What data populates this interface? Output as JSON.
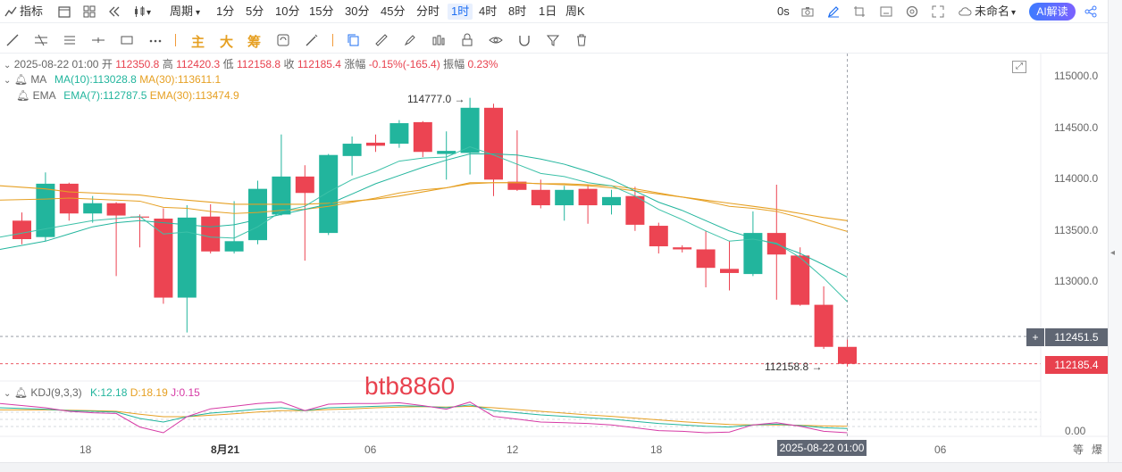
{
  "toolbar": {
    "indicators_label": "指标",
    "period_label": "周期",
    "timeframes": [
      "1分",
      "5分",
      "10分",
      "15分",
      "30分",
      "45分",
      "分时",
      "1时",
      "4时",
      "8时",
      "1日",
      "周K"
    ],
    "active_timeframe": "1时",
    "countdown": "0s",
    "layout_name": "未命名",
    "ai_button": "AI解读"
  },
  "drawing_toolbar": {
    "text_main": "主",
    "text_big": "大",
    "text_chip": "筹"
  },
  "info": {
    "date": "2025-08-22 01:00",
    "open_label": "开",
    "open": "112350.8",
    "high_label": "高",
    "high": "112420.3",
    "low_label": "低",
    "low": "112158.8",
    "close_label": "收",
    "close": "112185.4",
    "change_label": "涨幅",
    "change": "-0.15%(-165.4)",
    "amplitude_label": "振幅",
    "amplitude": "0.23%"
  },
  "ma": {
    "name": "MA",
    "ma10": "MA(10):113028.8",
    "ma30": "MA(30):113611.1"
  },
  "ema": {
    "name": "EMA",
    "ema7": "EMA(7):112787.5",
    "ema30": "EMA(30):113474.9"
  },
  "kdj": {
    "name": "KDJ(9,3,3)",
    "k": "K:12.18",
    "d": "D:18.19",
    "j": "J:0.15"
  },
  "watermark": "btb8860",
  "price_axis": [
    "115000.0",
    "114500.0",
    "114000.0",
    "113500.0",
    "113000.0"
  ],
  "price_marks": {
    "crosshair": "112451.5",
    "last": "112185.4",
    "max_label": "114777.0",
    "min_label": "112158.8"
  },
  "kdj_axis": "0.00",
  "time_axis": [
    "18",
    "8月21",
    "06",
    "12",
    "18",
    "06"
  ],
  "crosshair_time": "2025-08-22 01:00",
  "axis_corner": [
    "等",
    "爆"
  ],
  "colors": {
    "up": "#22b59d",
    "down": "#ec4452",
    "ma10": "#22b59d",
    "ma30": "#e6a023",
    "accent": "#1f6ff2"
  },
  "chart_data": {
    "type": "candlestick",
    "interval": "1h",
    "candles": [
      {
        "o": 113580,
        "h": 113660,
        "l": 113350,
        "c": 113400
      },
      {
        "o": 113420,
        "h": 114050,
        "l": 113380,
        "c": 113940
      },
      {
        "o": 113940,
        "h": 113950,
        "l": 113580,
        "c": 113650
      },
      {
        "o": 113650,
        "h": 113820,
        "l": 113560,
        "c": 113750
      },
      {
        "o": 113750,
        "h": 113760,
        "l": 113040,
        "c": 113630
      },
      {
        "o": 113620,
        "h": 113640,
        "l": 113320,
        "c": 113610
      },
      {
        "o": 113600,
        "h": 113700,
        "l": 112770,
        "c": 112830
      },
      {
        "o": 112830,
        "h": 113730,
        "l": 112490,
        "c": 113610
      },
      {
        "o": 113620,
        "h": 113740,
        "l": 113260,
        "c": 113280
      },
      {
        "o": 113280,
        "h": 113770,
        "l": 113260,
        "c": 113380
      },
      {
        "o": 113390,
        "h": 113970,
        "l": 113350,
        "c": 113890
      },
      {
        "o": 113640,
        "h": 114420,
        "l": 113630,
        "c": 114010
      },
      {
        "o": 114010,
        "h": 114120,
        "l": 113190,
        "c": 113850
      },
      {
        "o": 113460,
        "h": 114230,
        "l": 113440,
        "c": 114220
      },
      {
        "o": 114210,
        "h": 114400,
        "l": 114020,
        "c": 114330
      },
      {
        "o": 114340,
        "h": 114420,
        "l": 114250,
        "c": 114310
      },
      {
        "o": 114330,
        "h": 114560,
        "l": 114290,
        "c": 114530
      },
      {
        "o": 114540,
        "h": 114550,
        "l": 114200,
        "c": 114250
      },
      {
        "o": 114230,
        "h": 114450,
        "l": 113980,
        "c": 114260
      },
      {
        "o": 114240,
        "h": 114777,
        "l": 114030,
        "c": 114680
      },
      {
        "o": 114680,
        "h": 114720,
        "l": 113820,
        "c": 113980
      },
      {
        "o": 113960,
        "h": 114460,
        "l": 113870,
        "c": 113880
      },
      {
        "o": 113880,
        "h": 113980,
        "l": 113700,
        "c": 113730
      },
      {
        "o": 113730,
        "h": 113920,
        "l": 113580,
        "c": 113880
      },
      {
        "o": 113890,
        "h": 113930,
        "l": 113550,
        "c": 113730
      },
      {
        "o": 113730,
        "h": 113880,
        "l": 113640,
        "c": 113810
      },
      {
        "o": 113820,
        "h": 113910,
        "l": 113480,
        "c": 113540
      },
      {
        "o": 113530,
        "h": 113560,
        "l": 113260,
        "c": 113330
      },
      {
        "o": 113320,
        "h": 113340,
        "l": 113270,
        "c": 113300
      },
      {
        "o": 113300,
        "h": 113480,
        "l": 112930,
        "c": 113120
      },
      {
        "o": 113110,
        "h": 113380,
        "l": 112900,
        "c": 113070
      },
      {
        "o": 113060,
        "h": 113670,
        "l": 113040,
        "c": 113460
      },
      {
        "o": 113460,
        "h": 113930,
        "l": 112810,
        "c": 113250
      },
      {
        "o": 113240,
        "h": 113320,
        "l": 112750,
        "c": 112760
      },
      {
        "o": 112760,
        "h": 112940,
        "l": 112330,
        "c": 112350
      },
      {
        "o": 112350,
        "h": 112420,
        "l": 112158.8,
        "c": 112185
      }
    ],
    "ma10": [
      113300,
      113380,
      113450,
      113520,
      113560,
      113580,
      113560,
      113540,
      113520,
      113540,
      113590,
      113640,
      113690,
      113740,
      113840,
      113940,
      114020,
      114100,
      114170,
      114230,
      114230,
      114220,
      114180,
      114130,
      114060,
      113980,
      113870,
      113760,
      113680,
      113580,
      113480,
      113410,
      113350,
      113260,
      113150,
      113030
    ],
    "ma30": [
      113920,
      113890,
      113860,
      113850,
      113840,
      113830,
      113800,
      113780,
      113760,
      113740,
      113740,
      113740,
      113740,
      113750,
      113770,
      113790,
      113820,
      113860,
      113900,
      113940,
      113950,
      113950,
      113940,
      113930,
      113920,
      113900,
      113870,
      113840,
      113810,
      113780,
      113750,
      113720,
      113690,
      113650,
      113610,
      113580
    ],
    "ema7": [
      113420,
      113500,
      113540,
      113580,
      113600,
      113620,
      113450,
      113470,
      113420,
      113410,
      113520,
      113670,
      113720,
      113860,
      113980,
      114060,
      114160,
      114190,
      114200,
      114300,
      114220,
      114130,
      114040,
      114010,
      113950,
      113920,
      113820,
      113690,
      113590,
      113480,
      113380,
      113400,
      113360,
      113220,
      113020,
      112790
    ],
    "ema30": [
      113780,
      113790,
      113800,
      113790,
      113780,
      113770,
      113710,
      113700,
      113670,
      113650,
      113660,
      113680,
      113690,
      113720,
      113760,
      113800,
      113850,
      113880,
      113900,
      113950,
      113950,
      113950,
      113940,
      113940,
      113930,
      113920,
      113890,
      113850,
      113810,
      113770,
      113720,
      113700,
      113670,
      113610,
      113540,
      113475
    ],
    "kdj": {
      "k": [
        70,
        66,
        62,
        60,
        58,
        40,
        30,
        45,
        55,
        60,
        66,
        70,
        62,
        70,
        72,
        74,
        76,
        74,
        70,
        78,
        62,
        56,
        50,
        46,
        42,
        38,
        32,
        26,
        22,
        18,
        16,
        22,
        24,
        20,
        14,
        12
      ],
      "d": [
        64,
        64,
        63,
        62,
        60,
        52,
        45,
        45,
        49,
        53,
        58,
        62,
        62,
        65,
        67,
        70,
        72,
        73,
        72,
        74,
        70,
        65,
        60,
        55,
        50,
        46,
        41,
        36,
        31,
        27,
        23,
        22,
        22,
        21,
        19,
        18
      ],
      "j": [
        82,
        70,
        60,
        56,
        54,
        16,
        0,
        45,
        67,
        74,
        82,
        86,
        62,
        80,
        82,
        82,
        84,
        76,
        66,
        86,
        46,
        38,
        30,
        28,
        26,
        22,
        14,
        6,
        4,
        0,
        2,
        22,
        28,
        18,
        4,
        0
      ]
    },
    "ylim": [
      112000,
      115150
    ],
    "kdj_ylim": [
      0,
      100
    ]
  }
}
